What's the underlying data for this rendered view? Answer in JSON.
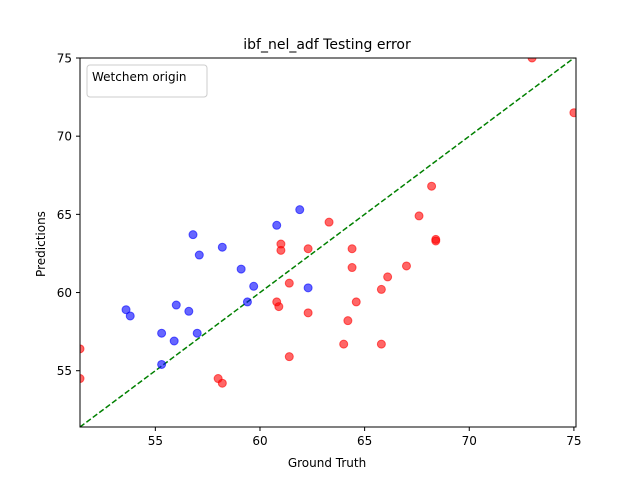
{
  "chart_data": {
    "type": "scatter",
    "title": "ibf_nel_adf Testing error",
    "xlabel": "Ground Truth",
    "ylabel": "Predictions",
    "xlim": [
      51.4,
      75.1
    ],
    "ylim": [
      51.4,
      75.0
    ],
    "xticks": [
      55,
      60,
      65,
      70,
      75
    ],
    "yticks": [
      55,
      60,
      65,
      70,
      75
    ],
    "grid": false,
    "legend": {
      "title": "Wetchem origin",
      "placement": "top-left"
    },
    "reference_line": {
      "type": "y=x",
      "color": "#008000",
      "style": "dashed"
    },
    "series": [
      {
        "color": "#0000ff",
        "points": [
          [
            53.6,
            58.9
          ],
          [
            53.8,
            58.5
          ],
          [
            55.3,
            57.4
          ],
          [
            55.3,
            55.4
          ],
          [
            55.9,
            56.9
          ],
          [
            56.0,
            59.2
          ],
          [
            56.6,
            58.8
          ],
          [
            56.8,
            63.7
          ],
          [
            57.0,
            57.4
          ],
          [
            57.1,
            62.4
          ],
          [
            58.2,
            62.9
          ],
          [
            59.1,
            61.5
          ],
          [
            59.4,
            59.4
          ],
          [
            59.7,
            60.4
          ],
          [
            60.8,
            64.3
          ],
          [
            61.9,
            65.3
          ],
          [
            62.3,
            60.3
          ]
        ]
      },
      {
        "color": "#ff0000",
        "points": [
          [
            51.4,
            56.4
          ],
          [
            51.4,
            54.5
          ],
          [
            58.0,
            54.5
          ],
          [
            58.2,
            54.2
          ],
          [
            60.8,
            59.4
          ],
          [
            60.9,
            59.1
          ],
          [
            61.0,
            62.7
          ],
          [
            61.0,
            63.1
          ],
          [
            61.4,
            60.6
          ],
          [
            61.4,
            55.9
          ],
          [
            62.3,
            62.8
          ],
          [
            62.3,
            58.7
          ],
          [
            63.3,
            64.5
          ],
          [
            64.0,
            56.7
          ],
          [
            64.2,
            58.2
          ],
          [
            64.4,
            62.8
          ],
          [
            64.4,
            61.6
          ],
          [
            64.6,
            59.4
          ],
          [
            65.8,
            60.2
          ],
          [
            65.8,
            56.7
          ],
          [
            66.1,
            61.0
          ],
          [
            67.0,
            61.7
          ],
          [
            67.6,
            64.9
          ],
          [
            68.2,
            66.8
          ],
          [
            68.4,
            63.3
          ],
          [
            68.4,
            63.4
          ],
          [
            73.0,
            75.0
          ],
          [
            75.0,
            71.5
          ]
        ]
      }
    ]
  }
}
